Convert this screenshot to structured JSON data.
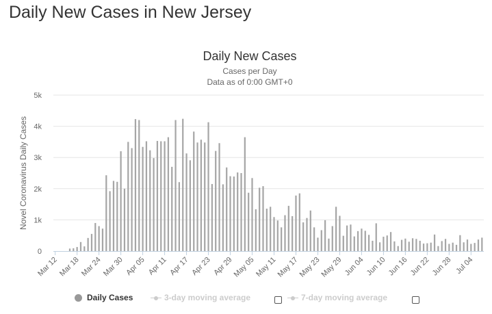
{
  "page": {
    "title": "Daily New Cases in New Jersey"
  },
  "colors": {
    "bar": "#a6a6a6",
    "grid": "#e6e6e6",
    "axis": "#c0d0e0",
    "text": "#666666"
  },
  "legend": {
    "daily": "Daily Cases",
    "ma3": "3-day moving average",
    "ma7": "7-day moving average"
  },
  "chart_data": {
    "type": "bar",
    "title": "Daily New Cases",
    "subtitle_line1": "Cases per Day",
    "subtitle_line2": "Data as of 0:00 GMT+0",
    "ylabel": "Novel Coronavirus Daily Cases",
    "xlabel": "",
    "ylim": [
      0,
      5000
    ],
    "yticks": [
      0,
      1000,
      2000,
      3000,
      4000,
      5000
    ],
    "ytick_labels": [
      "0",
      "1k",
      "2k",
      "3k",
      "4k",
      "5k"
    ],
    "tick_labels": [
      "Mar 12",
      "Mar 18",
      "Mar 24",
      "Mar 30",
      "Apr 05",
      "Apr 11",
      "Apr 17",
      "Apr 23",
      "Apr 29",
      "May 05",
      "May 11",
      "May 17",
      "May 23",
      "May 29",
      "Jun 04",
      "Jun 10",
      "Jun 16",
      "Jun 22",
      "Jun 28",
      "Jul 04"
    ],
    "tick_index": [
      0,
      6,
      12,
      18,
      24,
      30,
      36,
      42,
      48,
      54,
      60,
      66,
      72,
      78,
      84,
      90,
      96,
      102,
      108,
      114
    ],
    "series": [
      {
        "name": "Daily Cases",
        "values": [
          0,
          0,
          0,
          0,
          80,
          90,
          130,
          290,
          150,
          420,
          550,
          900,
          800,
          720,
          2430,
          1920,
          2250,
          2220,
          3200,
          2000,
          3500,
          3300,
          4230,
          4200,
          3340,
          3520,
          3230,
          2980,
          3530,
          3520,
          3520,
          3650,
          2700,
          4200,
          2210,
          4240,
          3130,
          2910,
          3830,
          3480,
          3570,
          3480,
          4130,
          2150,
          3210,
          3460,
          2140,
          2680,
          2400,
          2390,
          2520,
          2500,
          3650,
          1870,
          2340,
          1340,
          2030,
          2080,
          1360,
          1420,
          1090,
          980,
          760,
          1150,
          1450,
          1120,
          1780,
          1850,
          920,
          1060,
          1300,
          760,
          430,
          670,
          990,
          400,
          800,
          1420,
          1130,
          490,
          820,
          850,
          470,
          640,
          720,
          650,
          520,
          330,
          890,
          280,
          460,
          500,
          610,
          310,
          160,
          360,
          400,
          300,
          410,
          390,
          330,
          240,
          250,
          270,
          530,
          160,
          320,
          390,
          230,
          270,
          200,
          510,
          280,
          370,
          230,
          260,
          370,
          430
        ]
      }
    ],
    "legend": [
      "Daily Cases",
      "3-day moving average",
      "7-day moving average"
    ]
  }
}
